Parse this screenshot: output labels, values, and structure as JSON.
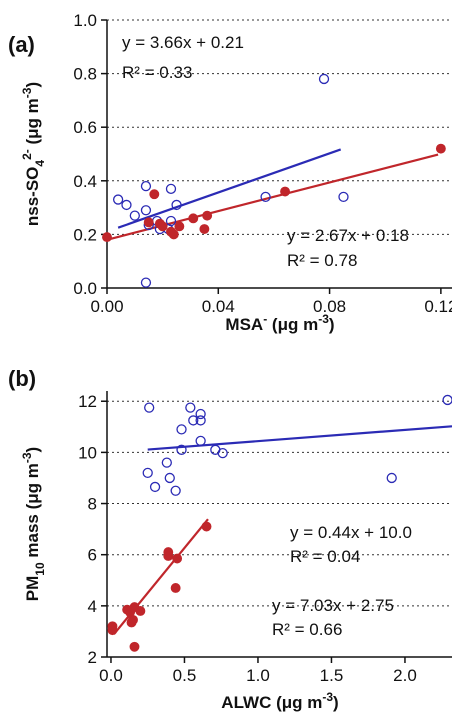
{
  "chart_data": [
    {
      "type": "scatter",
      "label": "(a)",
      "xlabel": [
        "MSA",
        "-",
        " (μg m",
        "-3",
        ")"
      ],
      "ylabel": [
        "nss-SO",
        "4",
        "2-",
        " (μg m",
        "-3",
        ")"
      ],
      "xlim": [
        0,
        0.124
      ],
      "ylim": [
        0,
        1.0
      ],
      "xticks": [
        {
          "value": 0,
          "label": "0.00"
        },
        {
          "value": 0.04,
          "label": "0.04"
        },
        {
          "value": 0.08,
          "label": "0.08"
        },
        {
          "value": 0.12,
          "label": "0.12"
        }
      ],
      "yticks": [
        {
          "value": 0,
          "label": "0.0"
        },
        {
          "value": 0.2,
          "label": "0.2"
        },
        {
          "value": 0.4,
          "label": "0.4"
        },
        {
          "value": 0.6,
          "label": "0.6"
        },
        {
          "value": 0.8,
          "label": "0.8"
        },
        {
          "value": 1.0,
          "label": "1.0"
        }
      ],
      "grid": true,
      "series": [
        {
          "color": "#2b2bb5",
          "marker": "open",
          "x": [
            0.004,
            0.007,
            0.01,
            0.014,
            0.014,
            0.015,
            0.014,
            0.018,
            0.019,
            0.022,
            0.023,
            0.025,
            0.023,
            0.057,
            0.085,
            0.078
          ],
          "values": [
            0.33,
            0.31,
            0.27,
            0.38,
            0.29,
            0.235,
            0.02,
            0.25,
            0.22,
            0.22,
            0.37,
            0.31,
            0.25,
            0.34,
            0.34,
            0.78
          ]
        },
        {
          "color": "#c0262b",
          "marker": "filled",
          "x": [
            0,
            0.017,
            0.015,
            0.019,
            0.02,
            0.023,
            0.024,
            0.026,
            0.031,
            0.036,
            0.035,
            0.064,
            0.12
          ],
          "values": [
            0.19,
            0.35,
            0.245,
            0.24,
            0.23,
            0.21,
            0.2,
            0.23,
            0.26,
            0.27,
            0.22,
            0.36,
            0.52
          ]
        }
      ],
      "fit_lines": [
        {
          "color": "#2b2bb5",
          "x": [
            0.004,
            0.084
          ],
          "values": [
            0.225,
            0.517
          ]
        },
        {
          "color": "#c0262b",
          "x": [
            0,
            0.119
          ],
          "values": [
            0.18,
            0.498
          ]
        }
      ],
      "annotations": [
        {
          "text": "y = 3.66x + 0.21",
          "color": "#2b2bb5"
        },
        {
          "text": "R² = 0.33",
          "color": "#2b2bb5"
        },
        {
          "text": "y = 2.67x + 0.18",
          "color": "#c0262b"
        },
        {
          "text": "R² = 0.78",
          "color": "#c0262b"
        }
      ]
    },
    {
      "type": "scatter",
      "label": "(b)",
      "xlabel": [
        "ALWC (μg m",
        "-3",
        ")"
      ],
      "ylabel": [
        "PM",
        "10",
        " mass (μg m",
        "-3",
        ")"
      ],
      "xlim": [
        -0.027,
        2.32
      ],
      "ylim": [
        2,
        12.4
      ],
      "xticks": [
        {
          "value": 0,
          "label": "0.0"
        },
        {
          "value": 0.5,
          "label": "0.5"
        },
        {
          "value": 1.0,
          "label": "1.0"
        },
        {
          "value": 1.5,
          "label": "1.5"
        },
        {
          "value": 2.0,
          "label": "2.0"
        }
      ],
      "yticks": [
        2,
        4,
        6,
        8,
        10,
        12
      ],
      "grid": true,
      "series": [
        {
          "color": "#2b2bb5",
          "marker": "open",
          "x": [
            0.26,
            0.54,
            0.56,
            0.61,
            0.61,
            0.48,
            0.61,
            0.48,
            0.71,
            0.76,
            0.38,
            0.25,
            0.3,
            0.4,
            0.44,
            1.91,
            2.29
          ],
          "values": [
            11.75,
            11.75,
            11.25,
            11.25,
            11.5,
            10.9,
            10.45,
            10.1,
            10.1,
            9.97,
            9.6,
            9.2,
            8.65,
            9.0,
            8.5,
            9.0,
            12.05
          ]
        },
        {
          "color": "#c0262b",
          "marker": "filled",
          "x": [
            0.01,
            0.01,
            0.13,
            0.14,
            0.11,
            0.15,
            0.16,
            0.16,
            0.2,
            0.39,
            0.39,
            0.44,
            0.45,
            0.65
          ],
          "values": [
            3.2,
            3.05,
            3.75,
            3.35,
            3.85,
            3.45,
            3.95,
            2.4,
            3.8,
            6.1,
            5.95,
            4.7,
            5.85,
            7.1
          ]
        }
      ],
      "fit_lines": [
        {
          "color": "#2b2bb5",
          "x": [
            0.25,
            2.32
          ],
          "values": [
            10.11,
            11.02
          ]
        },
        {
          "color": "#c0262b",
          "x": [
            0.02,
            0.66
          ],
          "values": [
            2.89,
            7.39
          ]
        }
      ],
      "annotations": [
        {
          "text": "y = 0.44x + 10.0",
          "color": "#2b2bb5"
        },
        {
          "text": "R² = 0.04",
          "color": "#2b2bb5"
        },
        {
          "text": "y = 7.03x + 2.75",
          "color": "#c0262b"
        },
        {
          "text": "R² = 0.66",
          "color": "#c0262b"
        }
      ]
    }
  ]
}
